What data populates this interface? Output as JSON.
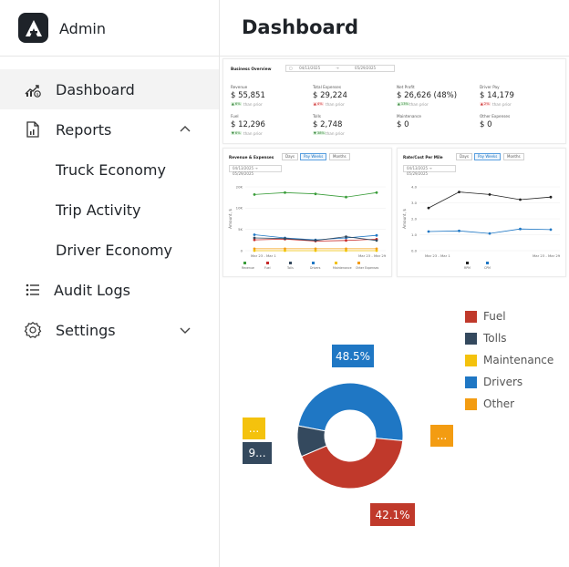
{
  "app": {
    "name": "Admin",
    "page_title": "Dashboard"
  },
  "sidebar": {
    "items": [
      {
        "label": "Dashboard",
        "icon": "chart-dollar-icon",
        "active": true
      },
      {
        "label": "Reports",
        "icon": "report-file-icon",
        "expanded": true
      },
      {
        "label": "Truck Economy",
        "sub": true
      },
      {
        "label": "Trip Activity",
        "sub": true
      },
      {
        "label": "Driver Economy",
        "sub": true
      },
      {
        "label": "Audit Logs",
        "icon": "list-icon"
      },
      {
        "label": "Settings",
        "icon": "gear-icon",
        "expanded": false
      }
    ]
  },
  "overview": {
    "title": "Business Overview",
    "date_from": "04/13/2025",
    "date_sep": "→",
    "date_to": "05/29/2025",
    "kpis": [
      {
        "label": "Revenue",
        "value": "$ 55,851",
        "delta": "▲ 6%",
        "delta_dir": "up",
        "note": "than prior"
      },
      {
        "label": "Total Expenses",
        "value": "$ 29,224",
        "delta": "▲ 4%",
        "delta_dir": "down",
        "note": "than prior"
      },
      {
        "label": "Net Profit",
        "value": "$ 26,626 (48%)",
        "delta": "▲ 13%",
        "delta_dir": "up",
        "note": "than prior"
      },
      {
        "label": "Driver Pay",
        "value": "$ 14,179",
        "delta": "▲ 2%",
        "delta_dir": "down",
        "note": "than prior"
      },
      {
        "label": "Fuel",
        "value": "$ 12,296",
        "delta": "▼ 6%",
        "delta_dir": "up",
        "note": "than prior"
      },
      {
        "label": "Tolls",
        "value": "$ 2,748",
        "delta": "▼ 38%",
        "delta_dir": "up",
        "note": "than prior"
      },
      {
        "label": "Maintenance",
        "value": "$ 0",
        "delta": "",
        "delta_dir": "",
        "note": ""
      },
      {
        "label": "Other Expenses",
        "value": "$ 0",
        "delta": "",
        "delta_dir": "",
        "note": ""
      }
    ]
  },
  "rev_chart": {
    "title": "Revenue & Expenses",
    "tabs": [
      "Days",
      "Pay Weeks",
      "Months"
    ],
    "active_tab": "Pay Weeks",
    "range": "04/13/2025 → 05/29/2025",
    "ylabel": "Amount, $",
    "yticks": [
      "20K",
      "10K",
      "5K",
      "0"
    ],
    "xticks": [
      "Mar 23 - Mar 1",
      "Mar 23 - Mar 29"
    ],
    "legend": [
      {
        "name": "Revenue",
        "color": "#3a9d3a"
      },
      {
        "name": "Fuel",
        "color": "#c62828"
      },
      {
        "name": "Tolls",
        "color": "#34495e"
      },
      {
        "name": "Drivers",
        "color": "#1f77c4"
      },
      {
        "name": "Maintenance",
        "color": "#f2c200"
      },
      {
        "name": "Other Expenses",
        "color": "#f39c12"
      }
    ]
  },
  "rate_chart": {
    "title": "Rate/Cost Per Mile",
    "tabs": [
      "Days",
      "Pay Weeks",
      "Months"
    ],
    "active_tab": "Pay Weeks",
    "range": "04/13/2025 → 05/29/2025",
    "ylabel": "Amount, $",
    "yticks": [
      "4.0",
      "3.0",
      "2.0",
      "1.0",
      "0.0"
    ],
    "xticks": [
      "Mar 23 - Mar 1",
      "Mar 23 - Mar 29"
    ],
    "legend": [
      {
        "name": "RPM",
        "color": "#222222"
      },
      {
        "name": "CPM",
        "color": "#1f77c4"
      }
    ]
  },
  "chart_data": {
    "type": "pie",
    "donut": true,
    "categories": [
      "Fuel",
      "Tolls",
      "Maintenance",
      "Drivers",
      "Other"
    ],
    "colors": [
      "#c0392b",
      "#34495e",
      "#f4c20d",
      "#1f77c4",
      "#f39c12"
    ],
    "values": [
      42.1,
      9.4,
      0,
      48.5,
      0
    ],
    "labels": [
      "42.1%",
      "9...",
      "...",
      "48.5%",
      "..."
    ],
    "legend_position": "top-right"
  }
}
